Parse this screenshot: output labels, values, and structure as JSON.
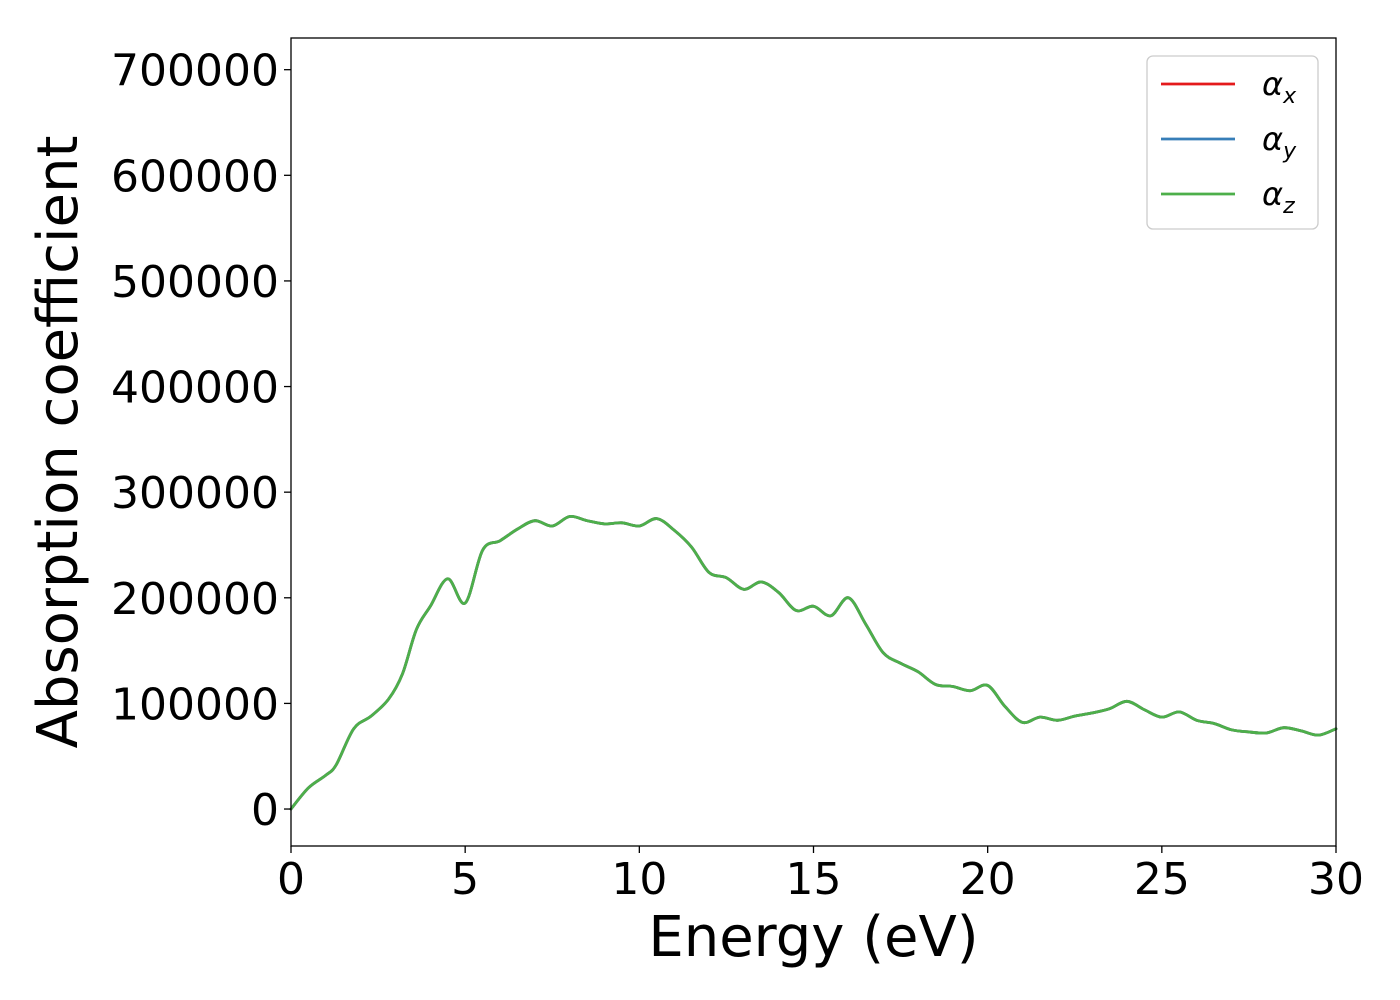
{
  "chart_data": {
    "type": "line",
    "xlabel": "Energy (eV)",
    "ylabel": "Absorption coefficient",
    "xlim": [
      0,
      30
    ],
    "ylim": [
      -35000,
      730000
    ],
    "x_ticks": [
      0,
      5,
      10,
      15,
      20,
      25,
      30
    ],
    "x_tick_labels": [
      "0",
      "5",
      "10",
      "15",
      "20",
      "25",
      "30"
    ],
    "y_ticks": [
      0,
      100000,
      200000,
      300000,
      400000,
      500000,
      600000,
      700000
    ],
    "y_tick_labels": [
      "0",
      "100000",
      "200000",
      "300000",
      "400000",
      "500000",
      "600000",
      "700000"
    ],
    "grid": false,
    "legend_position": "top-right",
    "x": [
      0,
      0.5,
      1.0,
      1.3,
      1.8,
      2.3,
      2.8,
      3.2,
      3.6,
      4.0,
      4.5,
      5.0,
      5.5,
      6.0,
      6.5,
      7.0,
      7.5,
      8.0,
      8.5,
      9.0,
      9.5,
      10.0,
      10.5,
      11.0,
      11.5,
      12.0,
      12.5,
      13.0,
      13.5,
      14.0,
      14.5,
      15.0,
      15.5,
      16.0,
      16.5,
      17.0,
      17.5,
      18.0,
      18.5,
      19.0,
      19.5,
      20.0,
      20.5,
      21.0,
      21.5,
      22.0,
      22.5,
      23.0,
      23.5,
      24.0,
      24.5,
      25.0,
      25.5,
      26.0,
      26.5,
      27.0,
      27.5,
      28.0,
      28.5,
      29.0,
      29.5,
      30.0
    ],
    "series": [
      {
        "name": "α_x",
        "label_main": "α",
        "label_sub": "x",
        "color": "#e41a1c",
        "values": [
          0,
          20000,
          32000,
          42000,
          76000,
          88000,
          104000,
          128000,
          170000,
          192000,
          218000,
          195000,
          245000,
          254000,
          265000,
          273000,
          268000,
          277000,
          273000,
          270000,
          271000,
          268000,
          275000,
          264000,
          248000,
          224000,
          219000,
          208000,
          215000,
          205000,
          188000,
          192000,
          183000,
          200000,
          175000,
          148000,
          138000,
          130000,
          118000,
          116000,
          112000,
          117000,
          97000,
          82000,
          87000,
          84000,
          88000,
          91000,
          95000,
          102000,
          94000,
          87000,
          92000,
          84000,
          81000,
          75000,
          73000,
          72000,
          77000,
          74000,
          70000,
          76000
        ]
      },
      {
        "name": "α_y",
        "label_main": "α",
        "label_sub": "y",
        "color": "#377eb8",
        "values": [
          0,
          20000,
          32000,
          42000,
          76000,
          88000,
          104000,
          128000,
          170000,
          192000,
          218000,
          195000,
          245000,
          254000,
          265000,
          273000,
          268000,
          277000,
          273000,
          270000,
          271000,
          268000,
          275000,
          264000,
          248000,
          224000,
          219000,
          208000,
          215000,
          205000,
          188000,
          192000,
          183000,
          200000,
          175000,
          148000,
          138000,
          130000,
          118000,
          116000,
          112000,
          117000,
          97000,
          82000,
          87000,
          84000,
          88000,
          91000,
          95000,
          102000,
          94000,
          87000,
          92000,
          84000,
          81000,
          75000,
          73000,
          72000,
          77000,
          74000,
          70000,
          76000
        ]
      },
      {
        "name": "α_z",
        "label_main": "α",
        "label_sub": "z",
        "color": "#4daf4a",
        "values": [
          0,
          20000,
          32000,
          42000,
          76000,
          88000,
          104000,
          128000,
          170000,
          192000,
          218000,
          195000,
          245000,
          254000,
          265000,
          273000,
          268000,
          277000,
          273000,
          270000,
          271000,
          268000,
          275000,
          264000,
          248000,
          224000,
          219000,
          208000,
          215000,
          205000,
          188000,
          192000,
          183000,
          200000,
          175000,
          148000,
          138000,
          130000,
          118000,
          116000,
          112000,
          117000,
          97000,
          82000,
          87000,
          84000,
          88000,
          91000,
          95000,
          102000,
          94000,
          87000,
          92000,
          84000,
          81000,
          75000,
          73000,
          72000,
          77000,
          74000,
          70000,
          76000
        ]
      }
    ]
  }
}
